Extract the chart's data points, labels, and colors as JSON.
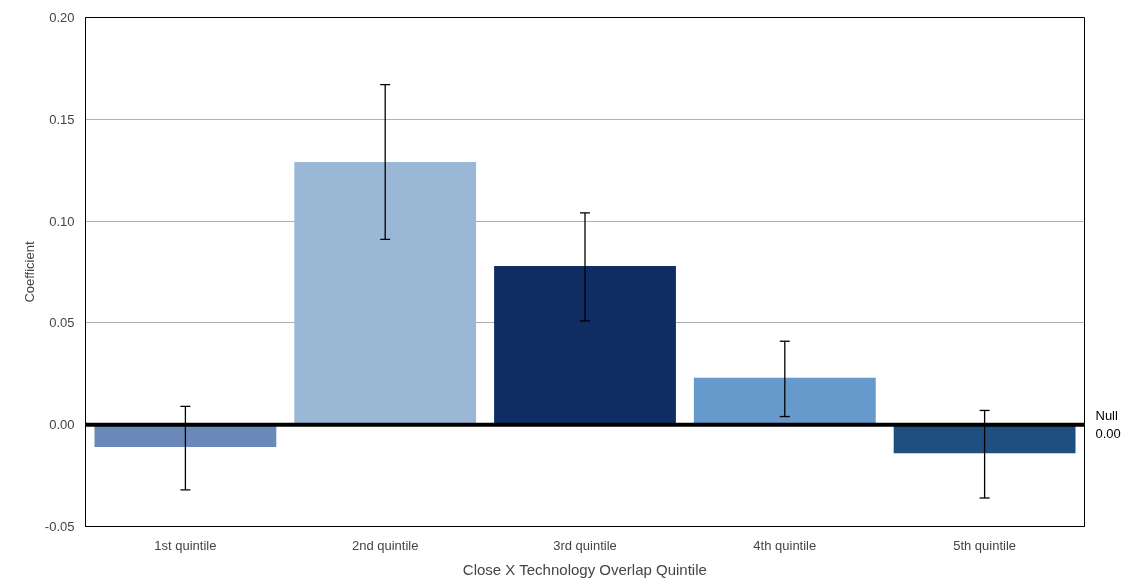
{
  "chart_data": {
    "type": "bar",
    "xlabel": "Close X Technology Overlap Quintile",
    "ylabel": "Coefficient",
    "categories": [
      "1st quintile",
      "2nd quintile",
      "3rd quintile",
      "4th quintile",
      "5th quintile"
    ],
    "values": [
      -0.011,
      0.129,
      0.078,
      0.023,
      -0.014
    ],
    "colors": [
      "#6a89b8",
      "#9bb7d6",
      "#0f2d62",
      "#6699cc",
      "#1f4e80"
    ],
    "errors": [
      [
        -0.032,
        0.009
      ],
      [
        0.091,
        0.167
      ],
      [
        0.051,
        0.104
      ],
      [
        0.004,
        0.041
      ],
      [
        -0.036,
        0.007
      ]
    ],
    "ylim": [
      -0.05,
      0.2
    ],
    "yticks": [
      -0.05,
      {
        "value": 0,
        "label": "0.00"
      },
      0.05,
      {
        "value": 0.1,
        "label": "0.10"
      },
      0.15,
      {
        "value": 0.2,
        "label": "0.20"
      }
    ],
    "ref_lines": [
      {
        "axis": "y",
        "value": 0,
        "label": "Null 0.00",
        "color": "#000000"
      }
    ],
    "grid": "y"
  }
}
